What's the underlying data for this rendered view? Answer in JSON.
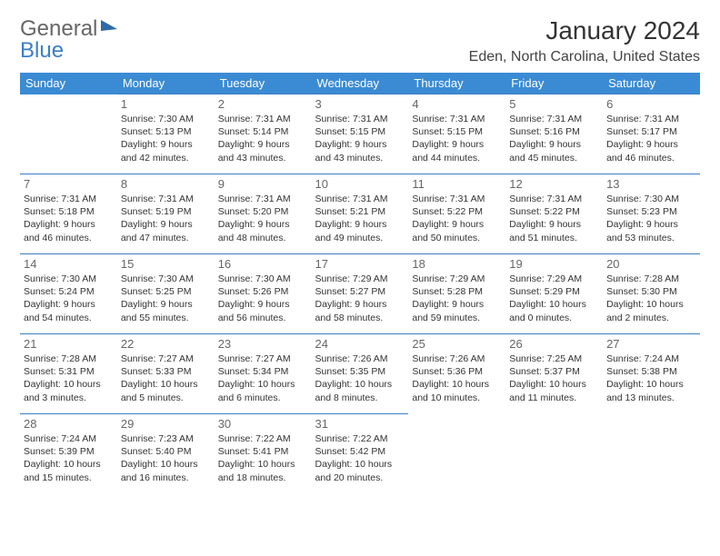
{
  "logo": {
    "text1": "General",
    "text2": "Blue"
  },
  "title": "January 2024",
  "location": "Eden, North Carolina, United States",
  "colors": {
    "header_bg": "#3b8bd4",
    "header_text": "#ffffff",
    "row_border": "#3b7fc4",
    "logo_gray": "#666666",
    "logo_blue": "#3b7fc4"
  },
  "dayNames": [
    "Sunday",
    "Monday",
    "Tuesday",
    "Wednesday",
    "Thursday",
    "Friday",
    "Saturday"
  ],
  "weeks": [
    [
      null,
      {
        "n": "1",
        "sr": "7:30 AM",
        "ss": "5:13 PM",
        "dl": "9 hours and 42 minutes."
      },
      {
        "n": "2",
        "sr": "7:31 AM",
        "ss": "5:14 PM",
        "dl": "9 hours and 43 minutes."
      },
      {
        "n": "3",
        "sr": "7:31 AM",
        "ss": "5:15 PM",
        "dl": "9 hours and 43 minutes."
      },
      {
        "n": "4",
        "sr": "7:31 AM",
        "ss": "5:15 PM",
        "dl": "9 hours and 44 minutes."
      },
      {
        "n": "5",
        "sr": "7:31 AM",
        "ss": "5:16 PM",
        "dl": "9 hours and 45 minutes."
      },
      {
        "n": "6",
        "sr": "7:31 AM",
        "ss": "5:17 PM",
        "dl": "9 hours and 46 minutes."
      }
    ],
    [
      {
        "n": "7",
        "sr": "7:31 AM",
        "ss": "5:18 PM",
        "dl": "9 hours and 46 minutes."
      },
      {
        "n": "8",
        "sr": "7:31 AM",
        "ss": "5:19 PM",
        "dl": "9 hours and 47 minutes."
      },
      {
        "n": "9",
        "sr": "7:31 AM",
        "ss": "5:20 PM",
        "dl": "9 hours and 48 minutes."
      },
      {
        "n": "10",
        "sr": "7:31 AM",
        "ss": "5:21 PM",
        "dl": "9 hours and 49 minutes."
      },
      {
        "n": "11",
        "sr": "7:31 AM",
        "ss": "5:22 PM",
        "dl": "9 hours and 50 minutes."
      },
      {
        "n": "12",
        "sr": "7:31 AM",
        "ss": "5:22 PM",
        "dl": "9 hours and 51 minutes."
      },
      {
        "n": "13",
        "sr": "7:30 AM",
        "ss": "5:23 PM",
        "dl": "9 hours and 53 minutes."
      }
    ],
    [
      {
        "n": "14",
        "sr": "7:30 AM",
        "ss": "5:24 PM",
        "dl": "9 hours and 54 minutes."
      },
      {
        "n": "15",
        "sr": "7:30 AM",
        "ss": "5:25 PM",
        "dl": "9 hours and 55 minutes."
      },
      {
        "n": "16",
        "sr": "7:30 AM",
        "ss": "5:26 PM",
        "dl": "9 hours and 56 minutes."
      },
      {
        "n": "17",
        "sr": "7:29 AM",
        "ss": "5:27 PM",
        "dl": "9 hours and 58 minutes."
      },
      {
        "n": "18",
        "sr": "7:29 AM",
        "ss": "5:28 PM",
        "dl": "9 hours and 59 minutes."
      },
      {
        "n": "19",
        "sr": "7:29 AM",
        "ss": "5:29 PM",
        "dl": "10 hours and 0 minutes."
      },
      {
        "n": "20",
        "sr": "7:28 AM",
        "ss": "5:30 PM",
        "dl": "10 hours and 2 minutes."
      }
    ],
    [
      {
        "n": "21",
        "sr": "7:28 AM",
        "ss": "5:31 PM",
        "dl": "10 hours and 3 minutes."
      },
      {
        "n": "22",
        "sr": "7:27 AM",
        "ss": "5:33 PM",
        "dl": "10 hours and 5 minutes."
      },
      {
        "n": "23",
        "sr": "7:27 AM",
        "ss": "5:34 PM",
        "dl": "10 hours and 6 minutes."
      },
      {
        "n": "24",
        "sr": "7:26 AM",
        "ss": "5:35 PM",
        "dl": "10 hours and 8 minutes."
      },
      {
        "n": "25",
        "sr": "7:26 AM",
        "ss": "5:36 PM",
        "dl": "10 hours and 10 minutes."
      },
      {
        "n": "26",
        "sr": "7:25 AM",
        "ss": "5:37 PM",
        "dl": "10 hours and 11 minutes."
      },
      {
        "n": "27",
        "sr": "7:24 AM",
        "ss": "5:38 PM",
        "dl": "10 hours and 13 minutes."
      }
    ],
    [
      {
        "n": "28",
        "sr": "7:24 AM",
        "ss": "5:39 PM",
        "dl": "10 hours and 15 minutes."
      },
      {
        "n": "29",
        "sr": "7:23 AM",
        "ss": "5:40 PM",
        "dl": "10 hours and 16 minutes."
      },
      {
        "n": "30",
        "sr": "7:22 AM",
        "ss": "5:41 PM",
        "dl": "10 hours and 18 minutes."
      },
      {
        "n": "31",
        "sr": "7:22 AM",
        "ss": "5:42 PM",
        "dl": "10 hours and 20 minutes."
      },
      null,
      null,
      null
    ]
  ],
  "labels": {
    "sunrise": "Sunrise: ",
    "sunset": "Sunset: ",
    "daylight": "Daylight: "
  }
}
